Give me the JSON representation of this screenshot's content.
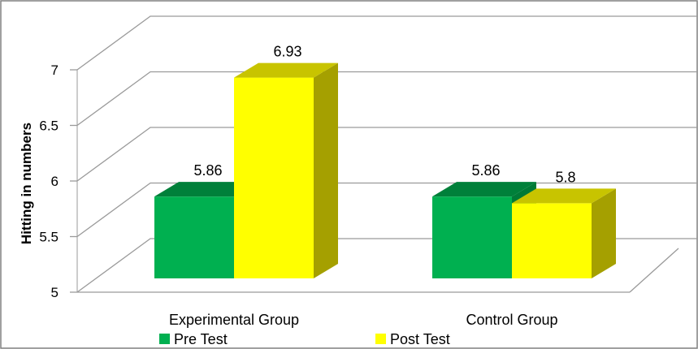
{
  "chart_data": {
    "type": "bar",
    "style": "3d-clustered-column",
    "categories": [
      "Experimental Group",
      "Control Group"
    ],
    "series": [
      {
        "name": "Pre Test",
        "values": [
          5.86,
          5.86
        ],
        "color": "#00b050",
        "top_color": "#00803a",
        "side_color": "#007a36"
      },
      {
        "name": "Post Test",
        "values": [
          6.93,
          5.8
        ],
        "color": "#ffff00",
        "top_color": "#c8c400",
        "side_color": "#a5a000"
      }
    ],
    "ylabel": "Hitting in numbers",
    "xlabel": "",
    "ylim": [
      5,
      7
    ],
    "yticks": [
      "5",
      "5.5",
      "6",
      "6.5",
      "7"
    ],
    "data_labels": [
      [
        "5.86",
        "5.86"
      ],
      [
        "6.93",
        "5.8"
      ]
    ],
    "grid": true,
    "legend_position": "bottom"
  }
}
